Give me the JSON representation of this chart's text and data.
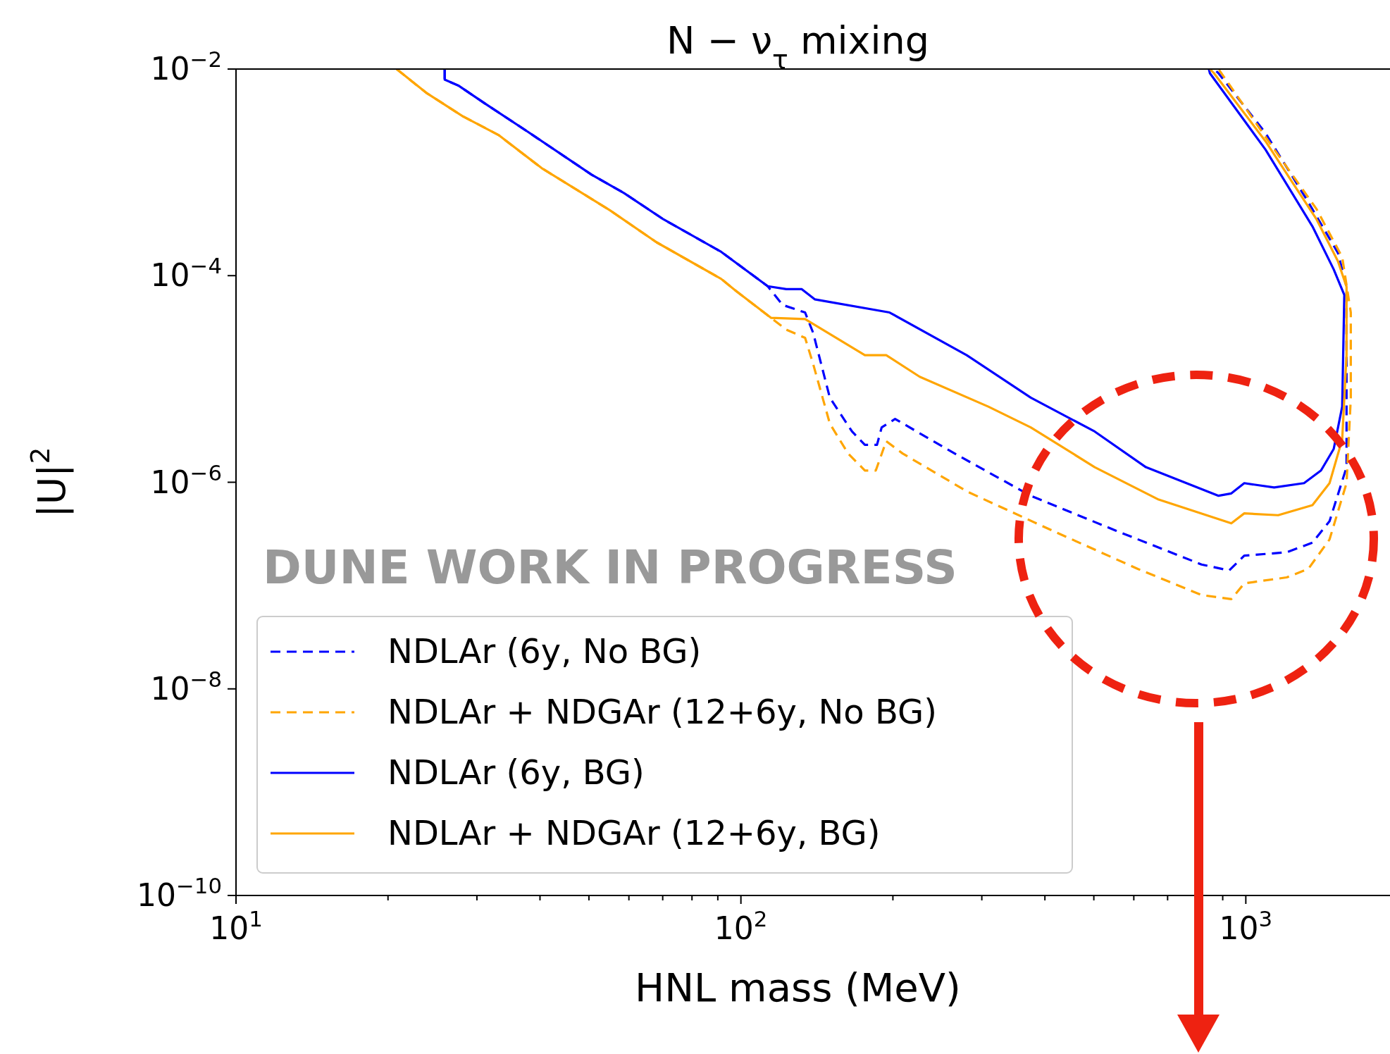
{
  "chart_data": {
    "type": "line",
    "title": "N − ν$_{τ}$ mixing",
    "xlabel": "HNL mass (MeV)",
    "ylabel": "|U|$^{2}$",
    "log": "xy",
    "xlim": [
      10,
      1930
    ],
    "ylim": [
      1e-10,
      0.01
    ],
    "xticks": [
      {
        "value": 10,
        "label": "10$^{1}$"
      },
      {
        "value": 20,
        "label": null
      },
      {
        "value": 30,
        "label": null
      },
      {
        "value": 40,
        "label": null
      },
      {
        "value": 50,
        "label": null
      },
      {
        "value": 60,
        "label": null
      },
      {
        "value": 70,
        "label": null
      },
      {
        "value": 80,
        "label": null
      },
      {
        "value": 90,
        "label": null
      },
      {
        "value": 100,
        "label": "10$^{2}$"
      },
      {
        "value": 200,
        "label": null
      },
      {
        "value": 300,
        "label": null
      },
      {
        "value": 400,
        "label": null
      },
      {
        "value": 500,
        "label": null
      },
      {
        "value": 600,
        "label": null
      },
      {
        "value": 700,
        "label": null
      },
      {
        "value": 800,
        "label": null
      },
      {
        "value": 900,
        "label": null
      },
      {
        "value": 1000,
        "label": "10$^{3}$"
      }
    ],
    "yticks": [
      {
        "value": 0.01,
        "label": "10$^{−2}$"
      },
      {
        "value": 0.0001,
        "label": "10$^{−4}$"
      },
      {
        "value": 1e-06,
        "label": "10$^{−6}$"
      },
      {
        "value": 1e-08,
        "label": "10$^{−8}$"
      },
      {
        "value": 1e-10,
        "label": "10$^{−10}$"
      }
    ],
    "legend": "bottom left",
    "annotations": [
      "DUNE WORK IN PROGRESS"
    ],
    "series": [
      {
        "name": "NDLAr (6y, No BG)",
        "color": "#0000ff",
        "line_style": "dashed",
        "x": [
          25.9,
          25.9,
          27.6,
          31,
          37.7,
          50.6,
          58.7,
          70.3,
          91.4,
          113,
          121,
          134,
          139,
          150,
          166,
          176,
          186,
          190,
          202,
          265,
          375,
          553,
          817,
          927,
          993,
          1205,
          1355,
          1465,
          1583,
          1583,
          1522,
          1328,
          1094,
          883,
          865
        ],
        "values": [
          0.01,
          0.0079,
          0.0069,
          0.0047,
          0.0025,
          0.00095,
          0.00063,
          0.00035,
          0.00017,
          7.9e-05,
          5.2e-05,
          4.4e-05,
          2.8e-05,
          6.6e-06,
          3.1e-06,
          2.3e-06,
          2.3e-06,
          3.4e-06,
          4.1e-06,
          1.9e-06,
          7.4e-07,
          3.4e-07,
          1.6e-07,
          1.4e-07,
          1.95e-07,
          2.1e-07,
          2.6e-07,
          4.2e-07,
          1.4e-06,
          7.8e-05,
          0.000166,
          0.00052,
          0.0024,
          0.0091,
          0.01
        ]
      },
      {
        "name": "NDLAr + NDGAr (12+6y, No BG)",
        "color": "#ffa500",
        "line_style": "dashed",
        "x": [
          20.8,
          23.8,
          28.1,
          33.1,
          40.3,
          55,
          68.1,
          91.4,
          97.5,
          123,
          134,
          139,
          150,
          163,
          176,
          185,
          194,
          209,
          281,
          414,
          611,
          817,
          936,
          993,
          1205,
          1330,
          1465,
          1583,
          1614,
          1614,
          1552,
          1381,
          1094,
          883
        ],
        "values": [
          0.01,
          0.0059,
          0.0035,
          0.0023,
          0.0011,
          0.00043,
          0.00021,
          9.3e-05,
          7.2e-05,
          3e-05,
          2.5e-05,
          1.4e-05,
          3.7e-06,
          1.9e-06,
          1.3e-06,
          1.3e-06,
          2.5e-06,
          1.9e-06,
          8.1e-07,
          3.4e-07,
          1.45e-07,
          8.1e-08,
          7.4e-08,
          1.05e-07,
          1.2e-07,
          1.45e-07,
          2.8e-07,
          9.8e-07,
          6.5e-06,
          4.4e-05,
          0.000151,
          0.00044,
          0.0022,
          0.01
        ]
      },
      {
        "name": "NDLAr (6y, BG)",
        "color": "#0000ff",
        "line_style": "solid",
        "x": [
          25.9,
          25.9,
          27.6,
          31,
          37.7,
          50.6,
          58.7,
          70.3,
          91.4,
          113,
          123,
          132,
          140,
          197,
          280,
          375,
          502,
          634,
          883,
          936,
          993,
          1138,
          1304,
          1409,
          1493,
          1552,
          1567,
          1493,
          1355,
          1094,
          849,
          845
        ],
        "values": [
          0.01,
          0.0079,
          0.0069,
          0.0047,
          0.0025,
          0.00095,
          0.00063,
          0.00035,
          0.00017,
          7.9e-05,
          7.4e-05,
          7.4e-05,
          5.9e-05,
          4.4e-05,
          1.7e-05,
          6.6e-06,
          3.1e-06,
          1.4e-06,
          7.4e-07,
          7.8e-07,
          9.8e-07,
          8.9e-07,
          9.8e-07,
          1.3e-06,
          2.1e-06,
          5.4e-06,
          6.5e-05,
          0.000115,
          0.0003,
          0.00166,
          0.0091,
          0.01
        ]
      },
      {
        "name": "NDLAr + NDGAr (12+6y, BG)",
        "color": "#ffa500",
        "line_style": "solid",
        "x": [
          20.8,
          23.8,
          28.1,
          33.1,
          40.3,
          55,
          68.1,
          91.4,
          97.5,
          114.8,
          134,
          176,
          194,
          226,
          309,
          375,
          502,
          672,
          936,
          993,
          1159,
          1355,
          1465,
          1552,
          1583,
          1583,
          1522,
          1381,
          1094,
          865,
          849
        ],
        "values": [
          0.01,
          0.0059,
          0.0035,
          0.0023,
          0.0011,
          0.00043,
          0.00021,
          9.3e-05,
          7.2e-05,
          3.9e-05,
          3.8e-05,
          1.7e-05,
          1.7e-05,
          1.05e-05,
          5.4e-06,
          3.4e-06,
          1.4e-06,
          6.8e-07,
          4e-07,
          5e-07,
          4.8e-07,
          6e-07,
          9.8e-07,
          2.6e-06,
          1.7e-05,
          7.8e-05,
          0.000138,
          0.00035,
          0.002,
          0.0091,
          0.01
        ]
      }
    ]
  }
}
